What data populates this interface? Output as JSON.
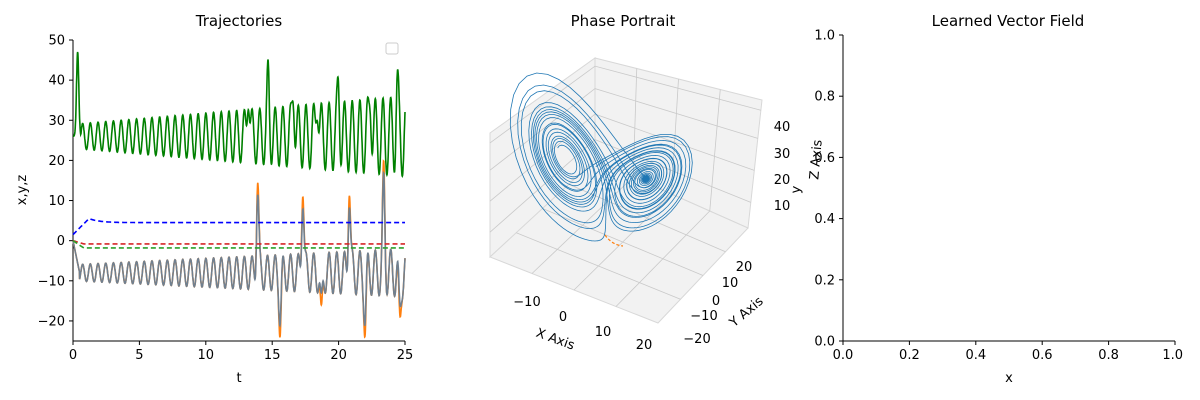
{
  "chart_data": [
    {
      "type": "line",
      "title": "Trajectories",
      "xlabel": "t",
      "ylabel": "x,y,z",
      "xlim": [
        0,
        25
      ],
      "ylim": [
        -25,
        50
      ],
      "x_ticks": [
        "0",
        "5",
        "10",
        "15",
        "20",
        "25"
      ],
      "y_ticks": [
        "−20",
        "−10",
        "0",
        "10",
        "20",
        "30",
        "40",
        "50"
      ],
      "legend": "top-right (empty)",
      "series": [
        {
          "style": "solid",
          "color": "#008000",
          "kind": "oscillation",
          "base": 26,
          "amp_start": 3,
          "amp_end": 10,
          "spike_times": [
            13.2,
            14.7,
            16.6,
            18.4,
            20.0,
            22.4,
            24.4
          ],
          "spike_peak": 46,
          "initial_peak": 47
        },
        {
          "style": "solid",
          "color": "#ff7f0e",
          "kind": "oscillation",
          "base": -8,
          "amp_start": 2,
          "amp_end": 6,
          "spike_times": [
            13.9,
            15.6,
            17.3,
            18.7,
            20.8,
            22.0,
            23.4,
            24.6
          ],
          "spike_peak": 15,
          "spike_trough": -21
        },
        {
          "style": "solid",
          "color": "#708090",
          "kind": "oscillation",
          "base": -8,
          "amp_start": 2,
          "amp_end": 6,
          "spike_times": [
            13.9,
            15.6,
            17.3,
            18.7,
            20.8,
            22.0,
            23.4,
            24.6
          ],
          "spike_peak": 12,
          "spike_trough": -18
        },
        {
          "style": "dashed",
          "color": "#0000ff",
          "kind": "flat",
          "start": 1.5,
          "peak": 5.5,
          "value": 4.5
        },
        {
          "style": "dashed",
          "color": "#d62728",
          "kind": "flat",
          "start": 0,
          "value": -0.8
        },
        {
          "style": "dashed",
          "color": "#2ca02c",
          "kind": "flat",
          "start": 0,
          "value": -1.8
        }
      ]
    },
    {
      "type": "line3d",
      "title": "Phase Portrait",
      "xlabel": "X Axis",
      "ylabel": "Y Axis",
      "zlabel": "Z Axis",
      "extra_label": "y",
      "x_ticks": [
        "−10",
        "0",
        "10",
        "20"
      ],
      "y_ticks": [
        "−20",
        "−10",
        "0",
        "10",
        "20"
      ],
      "z_ticks": [
        "10",
        "20",
        "30",
        "40"
      ],
      "series": [
        {
          "name": "",
          "color": "#1f77b4",
          "kind": "lorenz attractor"
        },
        {
          "name": "",
          "color": "#ff7f0e",
          "kind": "dashed short segment"
        }
      ]
    },
    {
      "type": "quiver",
      "title": "Learned Vector Field",
      "xlabel": "x",
      "xlim": [
        0,
        1
      ],
      "ylim": [
        0,
        1
      ],
      "x_ticks": [
        "0.0",
        "0.2",
        "0.4",
        "0.6",
        "0.8",
        "1.0"
      ],
      "y_ticks": [
        "0.0",
        "0.2",
        "0.4",
        "0.6",
        "0.8",
        "1.0"
      ],
      "empty": true
    }
  ]
}
